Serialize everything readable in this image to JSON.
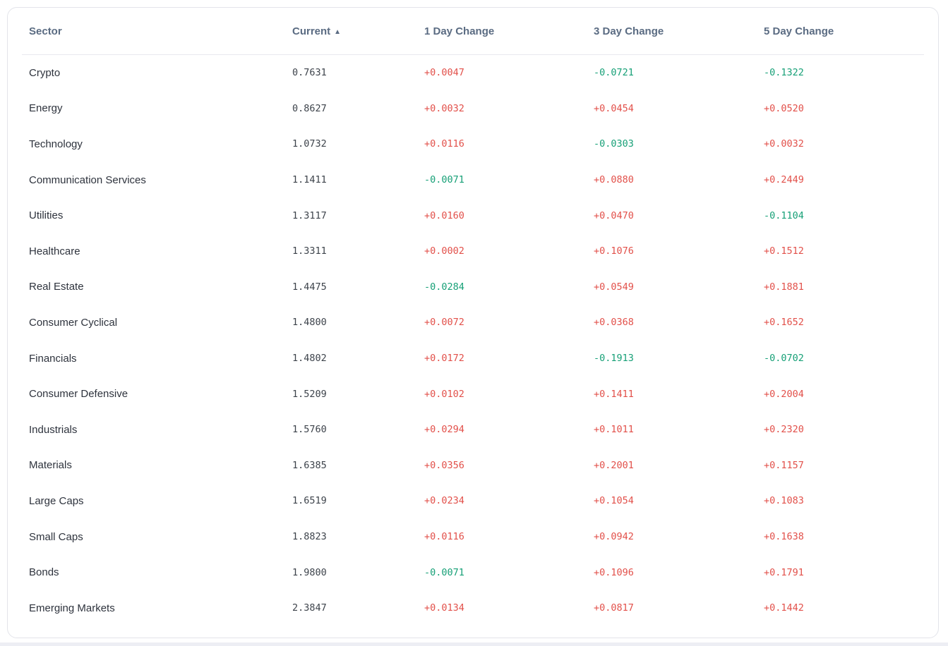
{
  "table": {
    "columns": [
      {
        "key": "sector",
        "label": "Sector"
      },
      {
        "key": "current",
        "label": "Current"
      },
      {
        "key": "d1",
        "label": "1 Day Change"
      },
      {
        "key": "d3",
        "label": "3 Day Change"
      },
      {
        "key": "d5",
        "label": "5 Day Change"
      }
    ],
    "sort": {
      "column": "current",
      "direction": "ascending",
      "indicator": "▲"
    },
    "rows": [
      {
        "sector": "Crypto",
        "current": "0.7631",
        "d1": "+0.0047",
        "d3": "-0.0721",
        "d5": "-0.1322"
      },
      {
        "sector": "Energy",
        "current": "0.8627",
        "d1": "+0.0032",
        "d3": "+0.0454",
        "d5": "+0.0520"
      },
      {
        "sector": "Technology",
        "current": "1.0732",
        "d1": "+0.0116",
        "d3": "-0.0303",
        "d5": "+0.0032"
      },
      {
        "sector": "Communication Services",
        "current": "1.1411",
        "d1": "-0.0071",
        "d3": "+0.0880",
        "d5": "+0.2449"
      },
      {
        "sector": "Utilities",
        "current": "1.3117",
        "d1": "+0.0160",
        "d3": "+0.0470",
        "d5": "-0.1104"
      },
      {
        "sector": "Healthcare",
        "current": "1.3311",
        "d1": "+0.0002",
        "d3": "+0.1076",
        "d5": "+0.1512"
      },
      {
        "sector": "Real Estate",
        "current": "1.4475",
        "d1": "-0.0284",
        "d3": "+0.0549",
        "d5": "+0.1881"
      },
      {
        "sector": "Consumer Cyclical",
        "current": "1.4800",
        "d1": "+0.0072",
        "d3": "+0.0368",
        "d5": "+0.1652"
      },
      {
        "sector": "Financials",
        "current": "1.4802",
        "d1": "+0.0172",
        "d3": "-0.1913",
        "d5": "-0.0702"
      },
      {
        "sector": "Consumer Defensive",
        "current": "1.5209",
        "d1": "+0.0102",
        "d3": "+0.1411",
        "d5": "+0.2004"
      },
      {
        "sector": "Industrials",
        "current": "1.5760",
        "d1": "+0.0294",
        "d3": "+0.1011",
        "d5": "+0.2320"
      },
      {
        "sector": "Materials",
        "current": "1.6385",
        "d1": "+0.0356",
        "d3": "+0.2001",
        "d5": "+0.1157"
      },
      {
        "sector": "Large Caps",
        "current": "1.6519",
        "d1": "+0.0234",
        "d3": "+0.1054",
        "d5": "+0.1083"
      },
      {
        "sector": "Small Caps",
        "current": "1.8823",
        "d1": "+0.0116",
        "d3": "+0.0942",
        "d5": "+0.1638"
      },
      {
        "sector": "Bonds",
        "current": "1.9800",
        "d1": "-0.0071",
        "d3": "+0.1096",
        "d5": "+0.1791"
      },
      {
        "sector": "Emerging Markets",
        "current": "2.3847",
        "d1": "+0.0134",
        "d3": "+0.0817",
        "d5": "+0.1442"
      }
    ]
  },
  "colors": {
    "positive_change": "#e2504a",
    "negative_change": "#17a077",
    "header_text": "#5a6b82",
    "card_border": "#e3e4ea"
  }
}
